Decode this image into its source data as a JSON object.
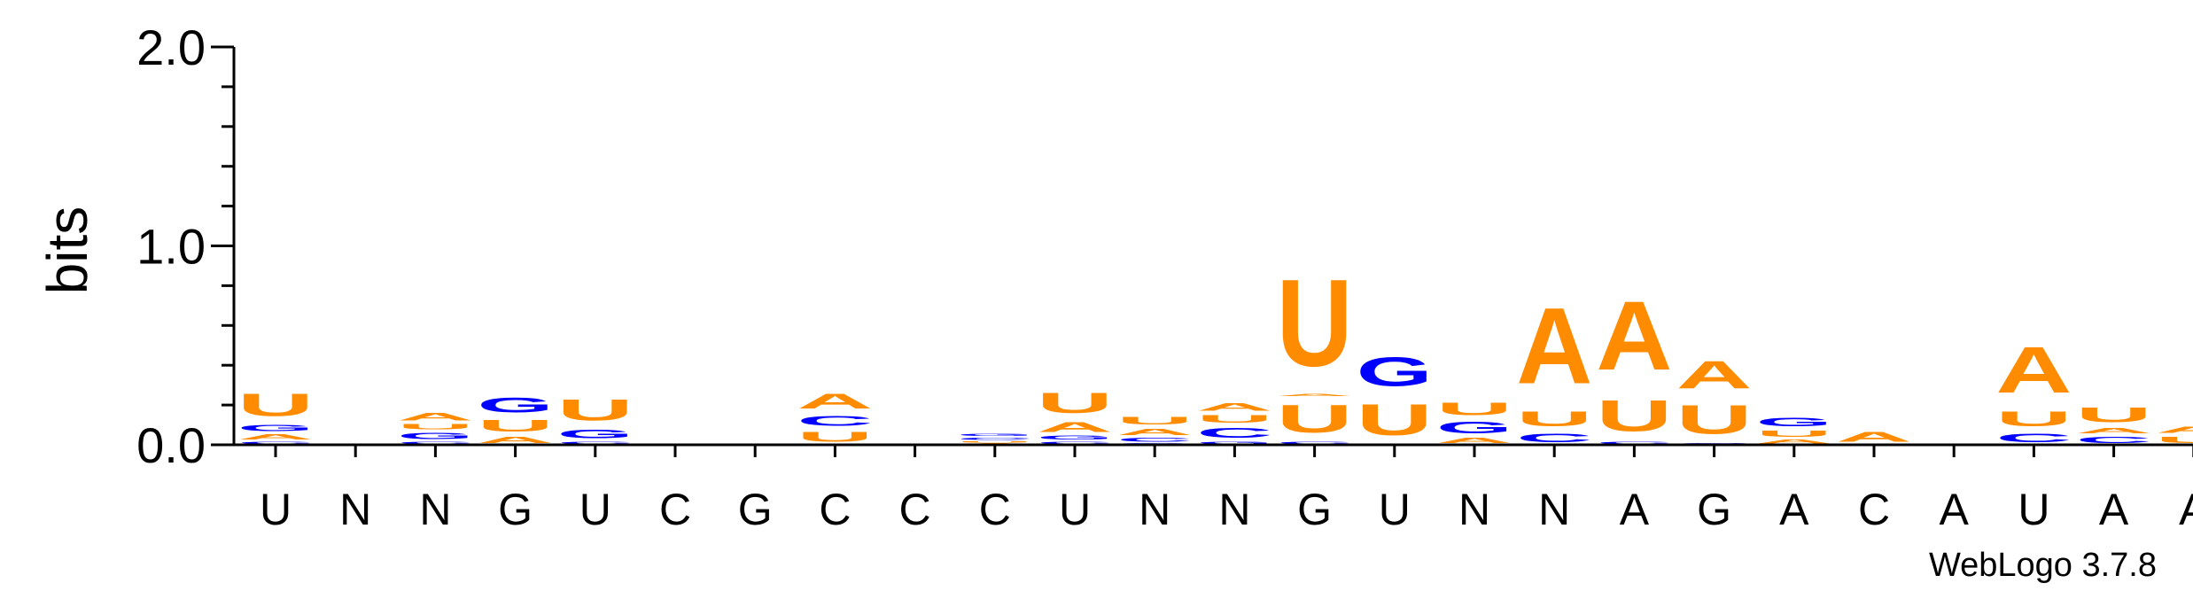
{
  "chart_data": {
    "type": "sequence-logo",
    "ylabel": "bits",
    "ylim": [
      0,
      2.0
    ],
    "yticks": [
      "0.0",
      "1.0",
      "2.0"
    ],
    "credit": "WebLogo 3.7.8",
    "colors": {
      "A": "#FF8C00",
      "U": "#FF8C00",
      "G": "#0000FF",
      "C": "#0000FF"
    },
    "positions": [
      {
        "label": "U",
        "stack": [
          {
            "base": "C",
            "bits": 0.02
          },
          {
            "base": "A",
            "bits": 0.04
          },
          {
            "base": "G",
            "bits": 0.05
          },
          {
            "base": "U",
            "bits": 0.18
          }
        ]
      },
      {
        "label": "N",
        "stack": []
      },
      {
        "label": "N",
        "stack": [
          {
            "base": "C",
            "bits": 0.02
          },
          {
            "base": "G",
            "bits": 0.05
          },
          {
            "base": "U",
            "bits": 0.04
          },
          {
            "base": "A",
            "bits": 0.06
          }
        ]
      },
      {
        "label": "G",
        "stack": [
          {
            "base": "A",
            "bits": 0.05
          },
          {
            "base": "U",
            "bits": 0.09
          },
          {
            "base": "G",
            "bits": 0.12
          }
        ]
      },
      {
        "label": "U",
        "stack": [
          {
            "base": "C",
            "bits": 0.02
          },
          {
            "base": "G",
            "bits": 0.07
          },
          {
            "base": "U",
            "bits": 0.17
          }
        ]
      },
      {
        "label": "C",
        "stack": []
      },
      {
        "label": "G",
        "stack": []
      },
      {
        "label": "C",
        "stack": [
          {
            "base": "U",
            "bits": 0.08
          },
          {
            "base": "C",
            "bits": 0.08
          },
          {
            "base": "A",
            "bits": 0.12
          }
        ]
      },
      {
        "label": "C",
        "stack": []
      },
      {
        "label": "C",
        "stack": [
          {
            "base": "A",
            "bits": 0.01
          },
          {
            "base": "U",
            "bits": 0.01
          },
          {
            "base": "C",
            "bits": 0.02
          },
          {
            "base": "G",
            "bits": 0.02
          }
        ]
      },
      {
        "label": "U",
        "stack": [
          {
            "base": "C",
            "bits": 0.02
          },
          {
            "base": "G",
            "bits": 0.03
          },
          {
            "base": "A",
            "bits": 0.08
          },
          {
            "base": "U",
            "bits": 0.16
          }
        ]
      },
      {
        "label": "N",
        "stack": [
          {
            "base": "G",
            "bits": 0.01
          },
          {
            "base": "C",
            "bits": 0.03
          },
          {
            "base": "A",
            "bits": 0.05
          },
          {
            "base": "U",
            "bits": 0.06
          }
        ]
      },
      {
        "label": "N",
        "stack": [
          {
            "base": "G",
            "bits": 0.02
          },
          {
            "base": "C",
            "bits": 0.08
          },
          {
            "base": "U",
            "bits": 0.06
          },
          {
            "base": "A",
            "bits": 0.06
          }
        ]
      },
      {
        "label": "G",
        "stack": [
          {
            "base": "C",
            "bits": 0.02
          },
          {
            "base": "U",
            "bits": 0.22
          },
          {
            "base": "A",
            "bits": 0.02
          },
          {
            "base": "U",
            "bits": 0.7
          }
        ]
      },
      {
        "label": "U",
        "stack": [
          {
            "base": "U",
            "bits": 0.25
          },
          {
            "base": "G",
            "bits": 0.23
          }
        ]
      },
      {
        "label": "N",
        "stack": [
          {
            "base": "A",
            "bits": 0.04
          },
          {
            "base": "G",
            "bits": 0.09
          },
          {
            "base": "U",
            "bits": 0.1
          }
        ]
      },
      {
        "label": "N",
        "stack": [
          {
            "base": "C",
            "bits": 0.07
          },
          {
            "base": "U",
            "bits": 0.12
          },
          {
            "base": "A",
            "bits": 0.61
          }
        ]
      },
      {
        "label": "A",
        "stack": [
          {
            "base": "C",
            "bits": 0.02
          },
          {
            "base": "U",
            "bits": 0.25
          },
          {
            "base": "A",
            "bits": 0.55
          }
        ]
      },
      {
        "label": "G",
        "stack": [
          {
            "base": "C",
            "bits": 0.01
          },
          {
            "base": "U",
            "bits": 0.23
          },
          {
            "base": "A",
            "bits": 0.22
          }
        ]
      },
      {
        "label": "A",
        "stack": [
          {
            "base": "A",
            "bits": 0.03
          },
          {
            "base": "U",
            "bits": 0.05
          },
          {
            "base": "G",
            "bits": 0.07
          }
        ]
      },
      {
        "label": "C",
        "stack": [
          {
            "base": "A",
            "bits": 0.08
          }
        ]
      },
      {
        "label": "A",
        "stack": []
      },
      {
        "label": "U",
        "stack": [
          {
            "base": "C",
            "bits": 0.07
          },
          {
            "base": "U",
            "bits": 0.12
          },
          {
            "base": "A",
            "bits": 0.37
          }
        ]
      },
      {
        "label": "A",
        "stack": [
          {
            "base": "C",
            "bits": 0.05
          },
          {
            "base": "A",
            "bits": 0.04
          },
          {
            "base": "U",
            "bits": 0.12
          }
        ]
      },
      {
        "label": "A",
        "stack": [
          {
            "base": "U",
            "bits": 0.05
          },
          {
            "base": "A",
            "bits": 0.05
          }
        ]
      }
    ]
  }
}
